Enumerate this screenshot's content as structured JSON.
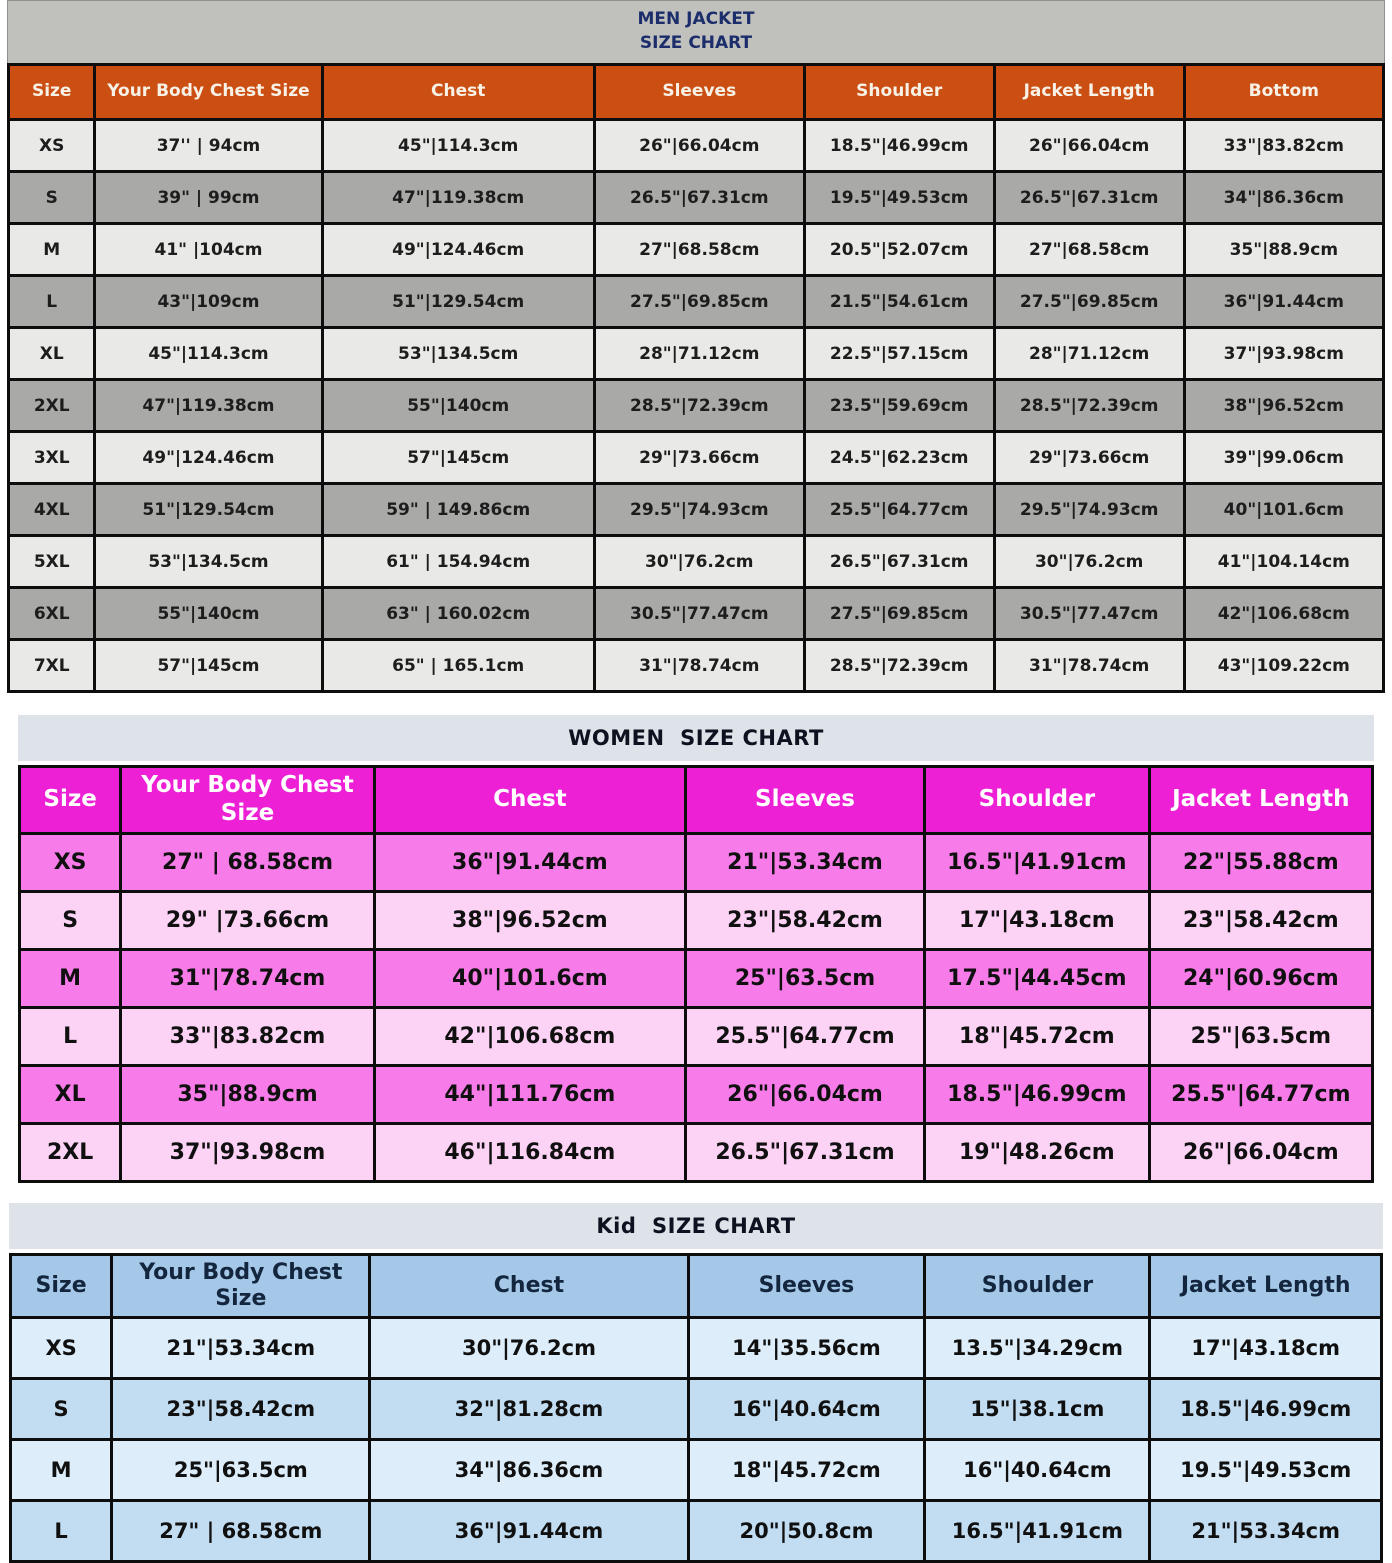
{
  "colors": {
    "men_band_bg": "#c0c0bd",
    "men_title_color": "#1c2d6b",
    "men_header_bg": "#cb4e13",
    "men_row_light": "#e9e9e7",
    "men_row_dark": "#a9a9a7",
    "section_band_bg": "#dde3e9",
    "women_header_bg": "#ed20d5",
    "women_row_dark": "#f77be9",
    "women_row_light": "#fcd2f5",
    "kid_header_bg": "#a5c8e9",
    "kid_header_text": "#13263e",
    "kid_row_light": "#ddeefa",
    "kid_row_dark": "#c2ddf2"
  },
  "chart_data": [
    {
      "type": "table",
      "id": "men",
      "title": "MEN JACKET\nSIZE CHART",
      "columns": [
        "Size",
        "Your Body Chest Size",
        "Chest",
        "Sleeves",
        "Shoulder",
        "Jacket Length",
        "Bottom"
      ],
      "rows": [
        [
          "XS",
          "37'' | 94cm",
          "45\"|114.3cm",
          "26\"|66.04cm",
          "18.5\"|46.99cm",
          "26\"|66.04cm",
          "33\"|83.82cm"
        ],
        [
          "S",
          "39\" | 99cm",
          "47\"|119.38cm",
          "26.5\"|67.31cm",
          "19.5\"|49.53cm",
          "26.5\"|67.31cm",
          "34\"|86.36cm"
        ],
        [
          "M",
          "41\" |104cm",
          "49\"|124.46cm",
          "27\"|68.58cm",
          "20.5\"|52.07cm",
          "27\"|68.58cm",
          "35\"|88.9cm"
        ],
        [
          "L",
          "43\"|109cm",
          "51\"|129.54cm",
          "27.5\"|69.85cm",
          "21.5\"|54.61cm",
          "27.5\"|69.85cm",
          "36\"|91.44cm"
        ],
        [
          "XL",
          "45\"|114.3cm",
          "53\"|134.5cm",
          "28\"|71.12cm",
          "22.5\"|57.15cm",
          "28\"|71.12cm",
          "37\"|93.98cm"
        ],
        [
          "2XL",
          "47\"|119.38cm",
          "55\"|140cm",
          "28.5\"|72.39cm",
          "23.5\"|59.69cm",
          "28.5\"|72.39cm",
          "38\"|96.52cm"
        ],
        [
          "3XL",
          "49\"|124.46cm",
          "57\"|145cm",
          "29\"|73.66cm",
          "24.5\"|62.23cm",
          "29\"|73.66cm",
          "39\"|99.06cm"
        ],
        [
          "4XL",
          "51\"|129.54cm",
          "59\" | 149.86cm",
          "29.5\"|74.93cm",
          "25.5\"|64.77cm",
          "29.5\"|74.93cm",
          "40\"|101.6cm"
        ],
        [
          "5XL",
          "53\"|134.5cm",
          "61\" | 154.94cm",
          "30\"|76.2cm",
          "26.5\"|67.31cm",
          "30\"|76.2cm",
          "41\"|104.14cm"
        ],
        [
          "6XL",
          "55\"|140cm",
          "63\" | 160.02cm",
          "30.5\"|77.47cm",
          "27.5\"|69.85cm",
          "30.5\"|77.47cm",
          "42\"|106.68cm"
        ],
        [
          "7XL",
          "57\"|145cm",
          "65\" | 165.1cm",
          "31\"|78.74cm",
          "28.5\"|72.39cm",
          "31\"|78.74cm",
          "43\"|109.22cm"
        ]
      ]
    },
    {
      "type": "table",
      "id": "women",
      "title": "WOMEN  SIZE CHART",
      "columns": [
        "Size",
        "Your Body Chest Size",
        "Chest",
        "Sleeves",
        "Shoulder",
        "Jacket Length"
      ],
      "rows": [
        [
          "XS",
          "27\" | 68.58cm",
          "36\"|91.44cm",
          "21\"|53.34cm",
          "16.5\"|41.91cm",
          "22\"|55.88cm"
        ],
        [
          "S",
          "29\" |73.66cm",
          "38\"|96.52cm",
          "23\"|58.42cm",
          "17\"|43.18cm",
          "23\"|58.42cm"
        ],
        [
          "M",
          "31\"|78.74cm",
          "40\"|101.6cm",
          "25\"|63.5cm",
          "17.5\"|44.45cm",
          "24\"|60.96cm"
        ],
        [
          "L",
          "33\"|83.82cm",
          "42\"|106.68cm",
          "25.5\"|64.77cm",
          "18\"|45.72cm",
          "25\"|63.5cm"
        ],
        [
          "XL",
          "35\"|88.9cm",
          "44\"|111.76cm",
          "26\"|66.04cm",
          "18.5\"|46.99cm",
          "25.5\"|64.77cm"
        ],
        [
          "2XL",
          "37\"|93.98cm",
          "46\"|116.84cm",
          "26.5\"|67.31cm",
          "19\"|48.26cm",
          "26\"|66.04cm"
        ]
      ]
    },
    {
      "type": "table",
      "id": "kid",
      "title": "Kid  SIZE CHART",
      "columns": [
        "Size",
        "Your Body Chest Size",
        "Chest",
        "Sleeves",
        "Shoulder",
        "Jacket Length"
      ],
      "rows": [
        [
          "XS",
          "21\"|53.34cm",
          "30\"|76.2cm",
          "14\"|35.56cm",
          "13.5\"|34.29cm",
          "17\"|43.18cm"
        ],
        [
          "S",
          "23\"|58.42cm",
          "32\"|81.28cm",
          "16\"|40.64cm",
          "15\"|38.1cm",
          "18.5\"|46.99cm"
        ],
        [
          "M",
          "25\"|63.5cm",
          "34\"|86.36cm",
          "18\"|45.72cm",
          "16\"|40.64cm",
          "19.5\"|49.53cm"
        ],
        [
          "L",
          "27\" | 68.58cm",
          "36\"|91.44cm",
          "20\"|50.8cm",
          "16.5\"|41.91cm",
          "21\"|53.34cm"
        ]
      ]
    }
  ]
}
